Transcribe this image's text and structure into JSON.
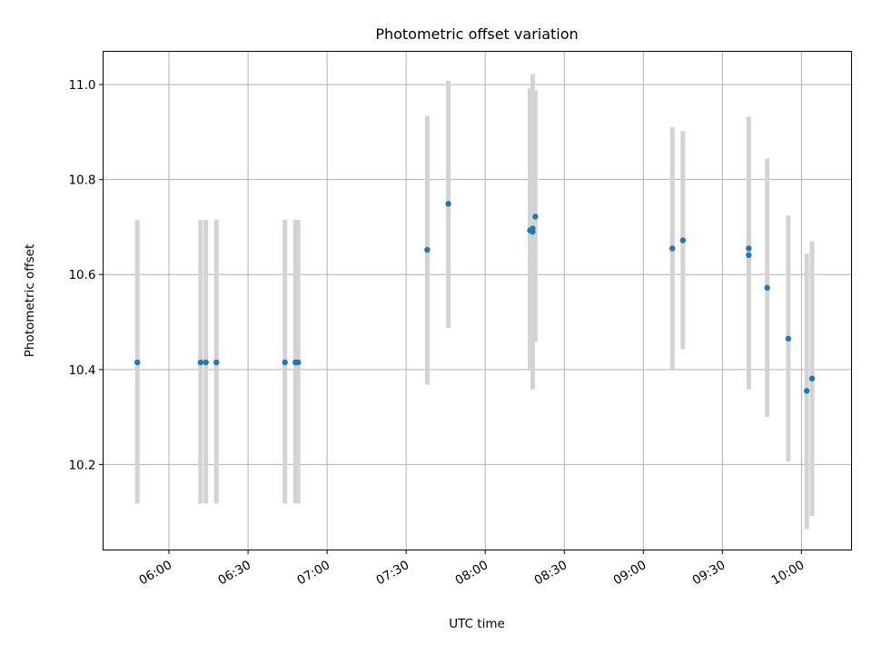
{
  "chart_data": {
    "type": "scatter",
    "title": "Photometric offset variation",
    "xlabel": "UTC time",
    "ylabel": "Photometric offset",
    "grid": true,
    "legend": "none",
    "x_axis": {
      "kind": "time",
      "xlim": [
        "05:35",
        "10:19"
      ],
      "ticks": [
        "06:00",
        "06:30",
        "07:00",
        "07:30",
        "08:00",
        "08:30",
        "09:00",
        "09:30",
        "10:00"
      ],
      "tick_label_rotation_deg": 30
    },
    "y_axis": {
      "ylim": [
        10.02,
        11.07
      ],
      "ticks": [
        "10.2",
        "10.4",
        "10.6",
        "10.8",
        "11.0"
      ]
    },
    "colors": {
      "points": "#1f77b4",
      "error_bars": "#d3d3d3",
      "grid": "#b0b0b0"
    },
    "series": [
      {
        "points": [
          {
            "x": "05:48",
            "y": 10.415,
            "ylo": 10.118,
            "yhi": 10.715
          },
          {
            "x": "06:12",
            "y": 10.415,
            "ylo": 10.118,
            "yhi": 10.715
          },
          {
            "x": "06:14",
            "y": 10.415,
            "ylo": 10.118,
            "yhi": 10.715
          },
          {
            "x": "06:18",
            "y": 10.415,
            "ylo": 10.118,
            "yhi": 10.715
          },
          {
            "x": "06:44",
            "y": 10.415,
            "ylo": 10.118,
            "yhi": 10.715
          },
          {
            "x": "06:48",
            "y": 10.415,
            "ylo": 10.118,
            "yhi": 10.715
          },
          {
            "x": "06:49",
            "y": 10.415,
            "ylo": 10.118,
            "yhi": 10.715
          },
          {
            "x": "07:38",
            "y": 10.652,
            "ylo": 10.368,
            "yhi": 10.934
          },
          {
            "x": "07:46",
            "y": 10.749,
            "ylo": 10.488,
            "yhi": 11.008
          },
          {
            "x": "08:17",
            "y": 10.693,
            "ylo": 10.398,
            "yhi": 10.992
          },
          {
            "x": "08:18",
            "y": 10.69,
            "ylo": 10.358,
            "yhi": 11.022
          },
          {
            "x": "08:18",
            "y": 10.697,
            "ylo": 10.408,
            "yhi": 10.988
          },
          {
            "x": "08:19",
            "y": 10.722,
            "ylo": 10.458,
            "yhi": 10.988
          },
          {
            "x": "09:11",
            "y": 10.655,
            "ylo": 10.398,
            "yhi": 10.91
          },
          {
            "x": "09:15",
            "y": 10.672,
            "ylo": 10.443,
            "yhi": 10.902
          },
          {
            "x": "09:40",
            "y": 10.641,
            "ylo": 10.358,
            "yhi": 10.922
          },
          {
            "x": "09:40",
            "y": 10.655,
            "ylo": 10.378,
            "yhi": 10.932
          },
          {
            "x": "09:47",
            "y": 10.572,
            "ylo": 10.3,
            "yhi": 10.844
          },
          {
            "x": "09:55",
            "y": 10.465,
            "ylo": 10.206,
            "yhi": 10.724
          },
          {
            "x": "10:02",
            "y": 10.355,
            "ylo": 10.064,
            "yhi": 10.644
          },
          {
            "x": "10:04",
            "y": 10.381,
            "ylo": 10.092,
            "yhi": 10.67
          }
        ]
      }
    ]
  }
}
